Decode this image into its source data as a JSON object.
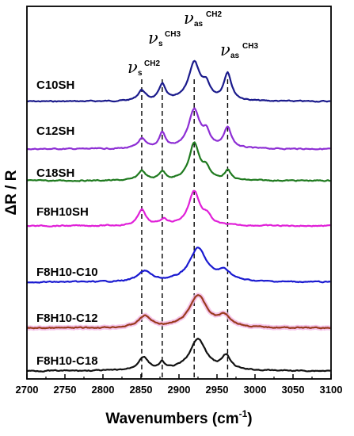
{
  "chart_data": {
    "type": "line",
    "xlabel_main": "Wavenumbers (cm",
    "xlabel_sup": "-1",
    "xlabel_end": ")",
    "ylabel": "ΔR / R",
    "xlim": [
      2700,
      3100
    ],
    "xticks": [
      "2700",
      "2750",
      "2800",
      "2850",
      "2900",
      "2950",
      "3000",
      "3050",
      "3100"
    ],
    "annotations": [
      {
        "main": "ν",
        "sub": "s",
        "sup": "CH2",
        "x": 2851
      },
      {
        "main": "ν",
        "sub": "s",
        "sup": "CH3",
        "x": 2878
      },
      {
        "main": "ν",
        "sub": "as",
        "sup": "CH2",
        "x": 2920
      },
      {
        "main": "ν",
        "sub": "as",
        "sup": "CH3",
        "x": 2964
      }
    ],
    "series": [
      {
        "name": "C10SH",
        "color": "#1b1b8c",
        "peaks": [
          [
            2851,
            0.55,
            6
          ],
          [
            2878,
            0.85,
            5
          ],
          [
            2920,
            2.0,
            9
          ],
          [
            2936,
            0.7,
            6
          ],
          [
            2964,
            1.45,
            6
          ]
        ]
      },
      {
        "name": "C12SH",
        "color": "#8d2ed4",
        "peaks": [
          [
            2851,
            0.5,
            6
          ],
          [
            2878,
            0.8,
            5
          ],
          [
            2920,
            2.0,
            9
          ],
          [
            2936,
            0.7,
            6
          ],
          [
            2964,
            1.05,
            6
          ]
        ]
      },
      {
        "name": "C18SH",
        "color": "#1f7a1f",
        "peaks": [
          [
            2851,
            0.5,
            6
          ],
          [
            2878,
            0.45,
            5
          ],
          [
            2920,
            1.95,
            8
          ],
          [
            2936,
            0.55,
            6
          ],
          [
            2964,
            0.5,
            5
          ]
        ]
      },
      {
        "name": "F8H10SH",
        "color": "#e020d8",
        "peaks": [
          [
            2851,
            0.85,
            6
          ],
          [
            2880,
            0.3,
            6
          ],
          [
            2920,
            1.8,
            9
          ],
          [
            2937,
            0.4,
            6
          ]
        ]
      },
      {
        "name": "F8H10-C10",
        "color": "#1a1ad0",
        "peaks": [
          [
            2855,
            0.55,
            10
          ],
          [
            2925,
            1.75,
            14
          ],
          [
            2960,
            0.5,
            10
          ]
        ]
      },
      {
        "name": "F8H10-C12",
        "color": "#9a3a1e",
        "peaks": [
          [
            2855,
            0.6,
            10
          ],
          [
            2925,
            1.7,
            14
          ],
          [
            2960,
            0.55,
            10
          ]
        ]
      },
      {
        "name": "F8H10-C18",
        "color": "#111111",
        "peaks": [
          [
            2853,
            0.7,
            8
          ],
          [
            2878,
            0.35,
            4
          ],
          [
            2925,
            1.65,
            13
          ],
          [
            2962,
            0.7,
            7
          ]
        ]
      }
    ]
  }
}
